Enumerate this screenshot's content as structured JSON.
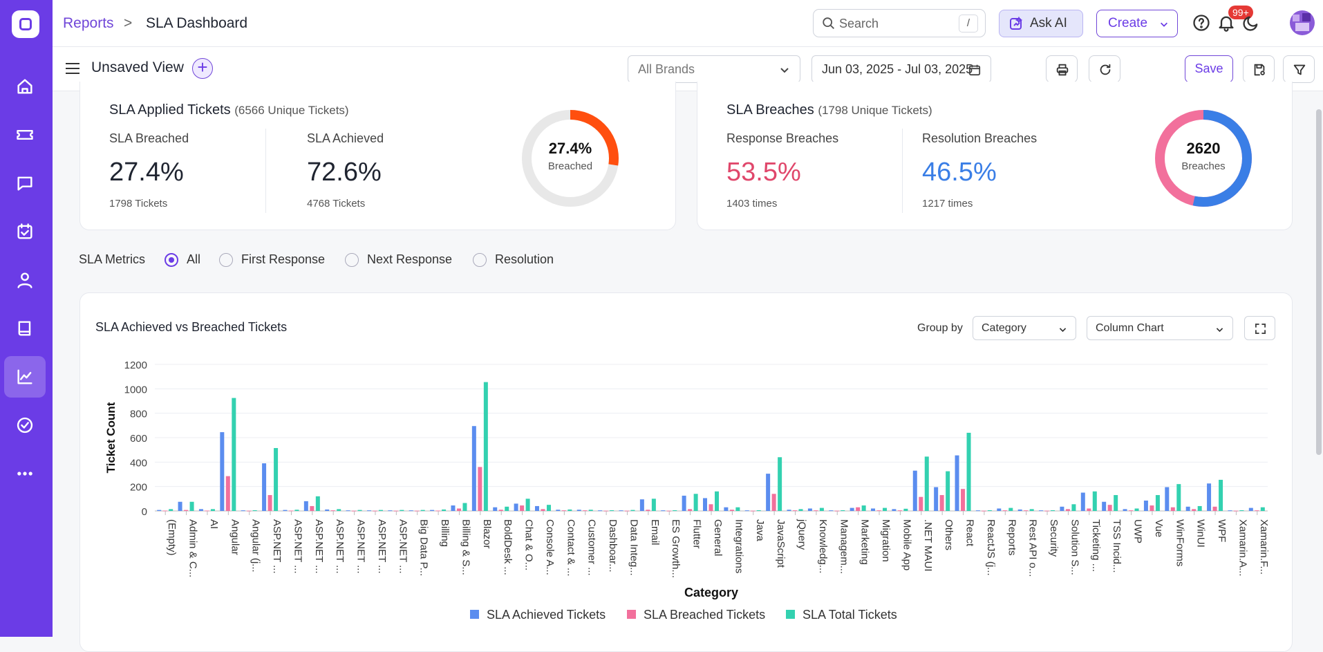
{
  "breadcrumb": {
    "parent": "Reports",
    "sep": ">",
    "current": "SLA Dashboard"
  },
  "search": {
    "placeholder": "Search",
    "shortcut": "/"
  },
  "header": {
    "ask_ai": "Ask AI",
    "create": "Create",
    "notifications": "99+"
  },
  "toolbar": {
    "view_name": "Unsaved View",
    "add": "+",
    "brand": "All Brands",
    "date_range": "Jun 03, 2025 - Jul 03, 2025",
    "save": "Save"
  },
  "applied": {
    "title": "SLA Applied Tickets",
    "subtitle": "(6566 Unique Tickets)",
    "breached_label": "SLA Breached",
    "breached_value": "27.4%",
    "breached_count": "1798 Tickets",
    "achieved_label": "SLA Achieved",
    "achieved_value": "72.6%",
    "achieved_count": "4768 Tickets",
    "donut_value": "27.4%",
    "donut_label": "Breached",
    "donut_fraction": 0.274
  },
  "breaches": {
    "title": "SLA Breaches",
    "subtitle": "(1798 Unique Tickets)",
    "response_label": "Response Breaches",
    "response_value": "53.5%",
    "response_times": "1403 times",
    "resolution_label": "Resolution Breaches",
    "resolution_value": "46.5%",
    "resolution_times": "1217 times",
    "donut_value": "2620",
    "donut_label": "Breaches",
    "donut_fraction": 0.535
  },
  "metrics": {
    "label": "SLA Metrics",
    "options": [
      "All",
      "First Response",
      "Next Response",
      "Resolution"
    ],
    "selected": "All"
  },
  "chart_panel": {
    "title": "SLA Achieved vs Breached Tickets",
    "group_by_label": "Group by",
    "group_by": "Category",
    "chart_type": "Column Chart"
  },
  "colors": {
    "accent": "#6b3ce6",
    "achieved": "#5b8def",
    "breached": "#f2709c",
    "total": "#33d1b0",
    "response": "#e0476b",
    "resolution": "#3a7ee6",
    "donut_orange": "#ff4f0f"
  },
  "chart_data": {
    "type": "bar",
    "xlabel": "Category",
    "ylabel": "Ticket Count",
    "ylim": [
      0,
      1200
    ],
    "yticks": [
      0,
      200,
      400,
      600,
      800,
      1000,
      1200
    ],
    "categories": [
      "(Empty)",
      "Admin & C...",
      "AI",
      "Angular",
      "Angular (j...",
      "ASP.NET ...",
      "ASP.NET ...",
      "ASP.NET ...",
      "ASP.NET ...",
      "ASP.NET ...",
      "ASP.NET ...",
      "ASP.NET ...",
      "Big Data P...",
      "Billing",
      "Billing & S...",
      "Blazor",
      "BoldDesk ...",
      "Chat & O...",
      "Console A...",
      "Contact & ...",
      "Customer ...",
      "Dashboar...",
      "Data Integ...",
      "Email",
      "ES Growth...",
      "Flutter",
      "General",
      "Integrations",
      "Java",
      "JavaScript",
      "jQuery",
      "Knowledg...",
      "Managem...",
      "Marketing",
      "Migration",
      "Mobile App",
      ".NET MAUI",
      "Others",
      "React",
      "ReactJS (j...",
      "Reports",
      "Rest API o...",
      "Security",
      "Solution S...",
      "Ticketing ...",
      "TSS Incid...",
      "UWP",
      "Vue",
      "WinForms",
      "WinUI",
      "WPF",
      "Xamarin.A...",
      "Xamarin.F..."
    ],
    "series": [
      {
        "name": "SLA Achieved Tickets",
        "values": [
          8,
          75,
          15,
          645,
          5,
          390,
          8,
          80,
          12,
          5,
          5,
          5,
          5,
          8,
          45,
          695,
          30,
          60,
          40,
          10,
          10,
          5,
          5,
          95,
          5,
          125,
          105,
          30,
          5,
          305,
          10,
          20,
          5,
          25,
          20,
          15,
          330,
          195,
          455,
          5,
          20,
          12,
          5,
          35,
          150,
          75,
          15,
          85,
          195,
          35,
          225,
          5,
          25
        ]
      },
      {
        "name": "SLA Breached Tickets",
        "values": [
          3,
          8,
          3,
          285,
          2,
          130,
          3,
          40,
          5,
          2,
          2,
          2,
          2,
          3,
          20,
          360,
          10,
          45,
          15,
          5,
          5,
          2,
          2,
          10,
          2,
          15,
          55,
          10,
          2,
          140,
          5,
          5,
          2,
          30,
          5,
          5,
          115,
          130,
          180,
          2,
          5,
          5,
          2,
          15,
          20,
          50,
          5,
          45,
          30,
          15,
          35,
          2,
          5
        ]
      },
      {
        "name": "SLA Total Tickets",
        "values": [
          15,
          75,
          15,
          925,
          6,
          515,
          10,
          120,
          15,
          8,
          8,
          8,
          8,
          12,
          65,
          1055,
          35,
          100,
          50,
          12,
          10,
          6,
          8,
          100,
          6,
          140,
          160,
          30,
          6,
          440,
          15,
          25,
          6,
          45,
          25,
          18,
          445,
          325,
          640,
          6,
          25,
          15,
          6,
          55,
          160,
          130,
          20,
          130,
          220,
          40,
          255,
          6,
          30
        ]
      }
    ]
  }
}
